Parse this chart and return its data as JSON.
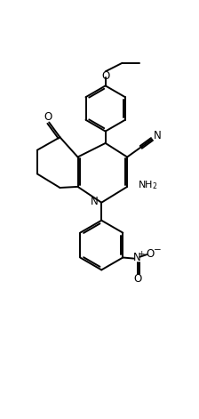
{
  "line_color": "#000000",
  "bg_color": "#ffffff",
  "lw": 1.4,
  "figsize": [
    2.24,
    4.71
  ],
  "dpi": 100,
  "xlim": [
    0,
    10
  ],
  "ylim": [
    0,
    21
  ]
}
